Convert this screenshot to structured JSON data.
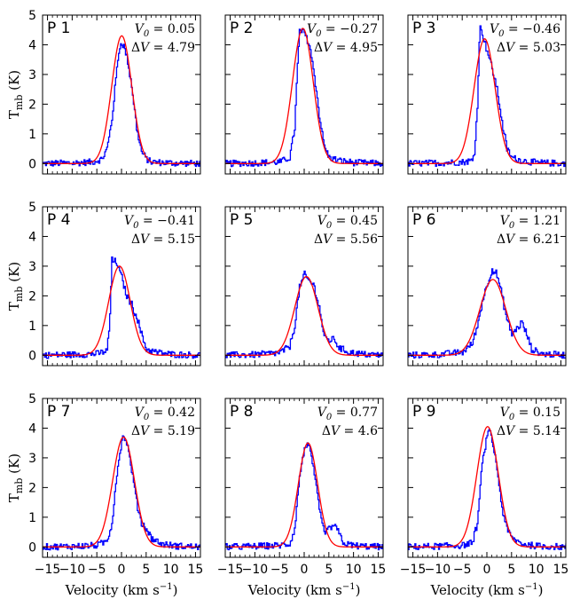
{
  "chart_data": {
    "type": "line",
    "layout": {
      "rows": 3,
      "cols": 3
    },
    "xlabel": "Velocity (km s",
    "xlabel_sup": "−1",
    "xlabel_close": ")",
    "ylabel": "T",
    "ylabel_sub": "mb",
    "ylabel_unit": " (K)",
    "xlim": [
      -16,
      16
    ],
    "ylim": [
      -0.35,
      5
    ],
    "xticks": [
      -15,
      -10,
      -5,
      0,
      5,
      10,
      15
    ],
    "xtick_labels": [
      "−15",
      "−10",
      "−5",
      "0",
      "5",
      "10",
      "15"
    ],
    "yticks": [
      0,
      1,
      2,
      3,
      4,
      5
    ],
    "ytick_labels": [
      "0",
      "1",
      "2",
      "3",
      "4",
      "5"
    ],
    "series_colors": {
      "observed": "#0000ff",
      "fit": "#ff0000"
    },
    "panels": [
      {
        "label": "P 1",
        "v0": "0.05",
        "dv": "4.79",
        "fit": {
          "amp": 4.3,
          "center": 0.05,
          "fwhm": 4.79
        },
        "observed": [
          [
            -16,
            0.0
          ],
          [
            -10,
            0.02
          ],
          [
            -6,
            0.05
          ],
          [
            -4,
            0.15
          ],
          [
            -3,
            0.5
          ],
          [
            -2,
            1.5
          ],
          [
            -1,
            3.2
          ],
          [
            -0.5,
            3.9
          ],
          [
            0,
            4.1
          ],
          [
            0.5,
            3.9
          ],
          [
            1,
            3.6
          ],
          [
            2,
            2.6
          ],
          [
            3,
            1.2
          ],
          [
            4,
            0.4
          ],
          [
            5,
            0.15
          ],
          [
            6,
            0.05
          ],
          [
            10,
            0.02
          ],
          [
            16,
            0.0
          ]
        ]
      },
      {
        "label": "P 2",
        "v0": "−0.27",
        "dv": "4.95",
        "fit": {
          "amp": 4.55,
          "center": -0.27,
          "fwhm": 4.95
        },
        "observed": [
          [
            -16,
            0.0
          ],
          [
            -10,
            0.02
          ],
          [
            -5,
            0.05
          ],
          [
            -3,
            0.2
          ],
          [
            -2,
            1.2
          ],
          [
            -1.5,
            3.0
          ],
          [
            -1,
            4.5
          ],
          [
            0,
            4.4
          ],
          [
            1,
            4.0
          ],
          [
            2,
            3.0
          ],
          [
            3,
            1.6
          ],
          [
            4,
            0.6
          ],
          [
            5,
            0.2
          ],
          [
            7,
            0.1
          ],
          [
            10,
            0.03
          ],
          [
            16,
            0.0
          ]
        ]
      },
      {
        "label": "P 3",
        "v0": "−0.46",
        "dv": "5.03",
        "fit": {
          "amp": 4.2,
          "center": -0.46,
          "fwhm": 5.03
        },
        "observed": [
          [
            -16,
            0.0
          ],
          [
            -10,
            0.02
          ],
          [
            -5,
            0.05
          ],
          [
            -3,
            0.1
          ],
          [
            -2.5,
            0.5
          ],
          [
            -2,
            2.0
          ],
          [
            -1.5,
            4.6
          ],
          [
            -1,
            4.4
          ],
          [
            0,
            3.8
          ],
          [
            1,
            3.2
          ],
          [
            2,
            2.5
          ],
          [
            3,
            1.4
          ],
          [
            4,
            0.5
          ],
          [
            5,
            0.2
          ],
          [
            7,
            0.1
          ],
          [
            10,
            0.03
          ],
          [
            16,
            0.0
          ]
        ]
      },
      {
        "label": "P 4",
        "v0": "−0.41",
        "dv": "5.15",
        "fit": {
          "amp": 3.0,
          "center": -0.41,
          "fwhm": 5.15
        },
        "observed": [
          [
            -16,
            0.0
          ],
          [
            -10,
            0.02
          ],
          [
            -5,
            0.05
          ],
          [
            -3,
            0.15
          ],
          [
            -2.5,
            1.0
          ],
          [
            -2,
            3.2
          ],
          [
            -1,
            3.1
          ],
          [
            0,
            2.6
          ],
          [
            1,
            2.0
          ],
          [
            2,
            1.7
          ],
          [
            3,
            1.3
          ],
          [
            4,
            0.7
          ],
          [
            5,
            0.2
          ],
          [
            7,
            0.1
          ],
          [
            10,
            0.03
          ],
          [
            16,
            0.0
          ]
        ]
      },
      {
        "label": "P 5",
        "v0": "0.45",
        "dv": "5.56",
        "fit": {
          "amp": 2.65,
          "center": 0.45,
          "fwhm": 5.56
        },
        "observed": [
          [
            -16,
            0.0
          ],
          [
            -10,
            0.02
          ],
          [
            -5,
            0.08
          ],
          [
            -3,
            0.3
          ],
          [
            -2,
            1.0
          ],
          [
            -1,
            2.3
          ],
          [
            0,
            2.7
          ],
          [
            1,
            2.5
          ],
          [
            2,
            2.3
          ],
          [
            3,
            1.6
          ],
          [
            4,
            0.6
          ],
          [
            5,
            0.5
          ],
          [
            6,
            0.55
          ],
          [
            7,
            0.25
          ],
          [
            9,
            0.1
          ],
          [
            12,
            0.03
          ],
          [
            16,
            0.0
          ]
        ]
      },
      {
        "label": "P 6",
        "v0": "1.21",
        "dv": "6.21",
        "fit": {
          "amp": 2.55,
          "center": 1.21,
          "fwhm": 6.21
        },
        "observed": [
          [
            -16,
            0.0
          ],
          [
            -10,
            0.02
          ],
          [
            -5,
            0.1
          ],
          [
            -3,
            0.4
          ],
          [
            -2,
            1.0
          ],
          [
            -1,
            1.8
          ],
          [
            0,
            2.4
          ],
          [
            1,
            2.9
          ],
          [
            2,
            2.7
          ],
          [
            3,
            2.0
          ],
          [
            4,
            1.2
          ],
          [
            5,
            0.7
          ],
          [
            6,
            0.9
          ],
          [
            7,
            1.1
          ],
          [
            8,
            0.7
          ],
          [
            9,
            0.2
          ],
          [
            11,
            0.05
          ],
          [
            16,
            0.0
          ]
        ]
      },
      {
        "label": "P 7",
        "v0": "0.42",
        "dv": "5.19",
        "fit": {
          "amp": 3.7,
          "center": 0.42,
          "fwhm": 5.19
        },
        "observed": [
          [
            -16,
            0.0
          ],
          [
            -10,
            0.02
          ],
          [
            -5,
            0.05
          ],
          [
            -3,
            0.2
          ],
          [
            -2,
            0.8
          ],
          [
            -1,
            2.5
          ],
          [
            0,
            3.6
          ],
          [
            0.5,
            3.7
          ],
          [
            1,
            3.5
          ],
          [
            2,
            2.6
          ],
          [
            3,
            1.5
          ],
          [
            4,
            0.8
          ],
          [
            5,
            0.6
          ],
          [
            6,
            0.3
          ],
          [
            8,
            0.1
          ],
          [
            11,
            0.03
          ],
          [
            16,
            0.0
          ]
        ]
      },
      {
        "label": "P 8",
        "v0": "0.77",
        "dv": "4.6",
        "fit": {
          "amp": 3.5,
          "center": 0.77,
          "fwhm": 4.6
        },
        "observed": [
          [
            -16,
            0.0
          ],
          [
            -10,
            0.02
          ],
          [
            -5,
            0.05
          ],
          [
            -3,
            0.1
          ],
          [
            -2,
            0.6
          ],
          [
            -1,
            2.4
          ],
          [
            0,
            3.3
          ],
          [
            0.5,
            3.5
          ],
          [
            1,
            3.3
          ],
          [
            2,
            2.5
          ],
          [
            3,
            1.2
          ],
          [
            4,
            0.5
          ],
          [
            5,
            0.6
          ],
          [
            6,
            0.75
          ],
          [
            7,
            0.45
          ],
          [
            8,
            0.1
          ],
          [
            11,
            0.03
          ],
          [
            16,
            0.0
          ]
        ]
      },
      {
        "label": "P 9",
        "v0": "0.15",
        "dv": "5.14",
        "fit": {
          "amp": 4.05,
          "center": 0.15,
          "fwhm": 5.14
        },
        "observed": [
          [
            -16,
            0.0
          ],
          [
            -10,
            0.02
          ],
          [
            -5,
            0.05
          ],
          [
            -3,
            0.15
          ],
          [
            -2,
            0.8
          ],
          [
            -1,
            2.8
          ],
          [
            0,
            3.8
          ],
          [
            0.5,
            3.9
          ],
          [
            1,
            3.6
          ],
          [
            2,
            2.6
          ],
          [
            3,
            1.3
          ],
          [
            4,
            0.6
          ],
          [
            5,
            0.3
          ],
          [
            7,
            0.1
          ],
          [
            10,
            0.03
          ],
          [
            16,
            0.0
          ]
        ]
      }
    ]
  }
}
